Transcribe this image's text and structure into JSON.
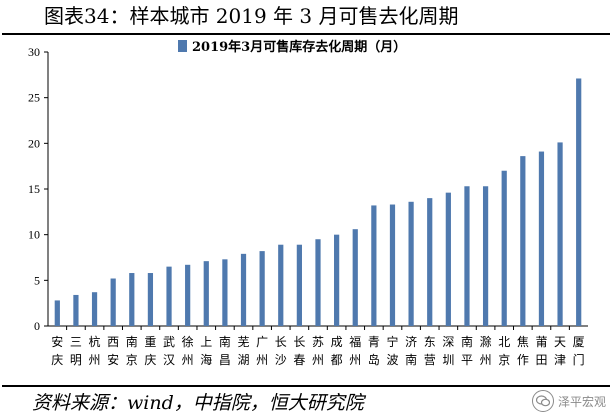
{
  "figure": {
    "title": "图表34：样本城市 2019 年 3 月可售去化周期",
    "source": "资料来源：wind，中指院，恒大研究院",
    "watermark": "泽平宏观"
  },
  "colors": {
    "bar": "#4f79ae",
    "bar_dark": "#3a5f8f",
    "axis": "#000000",
    "text": "#000000"
  },
  "chart_data": {
    "type": "bar",
    "title": "",
    "xlabel": "",
    "ylabel": "",
    "ylim": [
      0,
      30
    ],
    "yticks": [
      0,
      5,
      10,
      15,
      20,
      25,
      30
    ],
    "grid": false,
    "legend_position": "top-right",
    "categories": [
      "安庆",
      "三明",
      "杭州",
      "西安",
      "南京",
      "重庆",
      "武汉",
      "徐州",
      "上海",
      "南昌",
      "芜湖",
      "广州",
      "长沙",
      "长春",
      "苏州",
      "成都",
      "福州",
      "青岛",
      "宁波",
      "济南",
      "东营",
      "深圳",
      "南平",
      "滁州",
      "北京",
      "焦作",
      "莆田",
      "天津",
      "厦门"
    ],
    "series": [
      {
        "name": "2019年3月可售库存去化周期（月）",
        "values": [
          2.8,
          3.4,
          3.7,
          5.2,
          5.8,
          5.8,
          6.5,
          6.7,
          7.1,
          7.3,
          7.9,
          8.2,
          8.9,
          8.9,
          9.5,
          10.0,
          10.6,
          13.2,
          13.3,
          13.6,
          14.0,
          14.6,
          15.3,
          15.3,
          17.0,
          18.6,
          19.1,
          20.1,
          27.1
        ]
      }
    ]
  }
}
